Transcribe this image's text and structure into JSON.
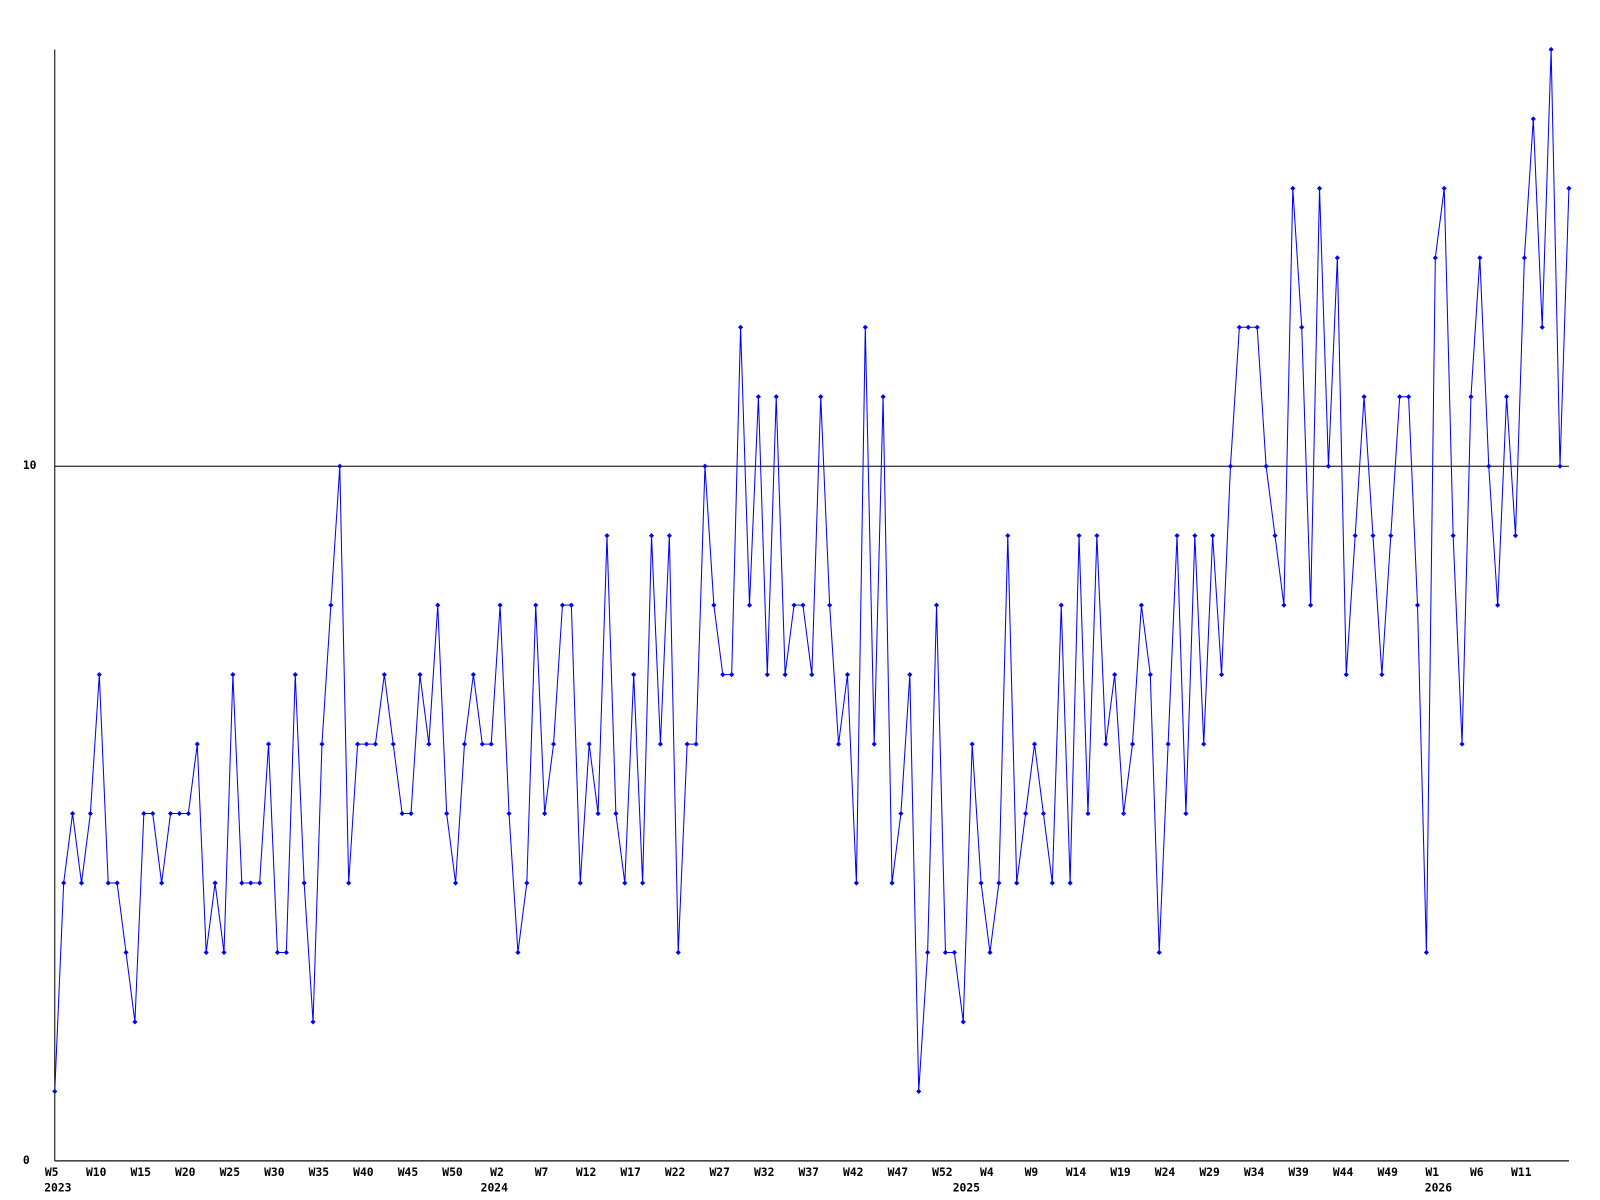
{
  "chart_data": {
    "type": "line",
    "categories": [
      "W5",
      null,
      null,
      null,
      null,
      "W10",
      null,
      null,
      null,
      null,
      "W15",
      null,
      null,
      null,
      null,
      "W20",
      null,
      null,
      null,
      null,
      "W25",
      null,
      null,
      null,
      null,
      "W30",
      null,
      null,
      null,
      null,
      "W35",
      null,
      null,
      null,
      null,
      "W40",
      null,
      null,
      null,
      null,
      "W45",
      null,
      null,
      null,
      null,
      "W50",
      null,
      null,
      null,
      null,
      "W2",
      null,
      null,
      null,
      null,
      "W7",
      null,
      null,
      null,
      null,
      "W12",
      null,
      null,
      null,
      null,
      "W17",
      null,
      null,
      null,
      null,
      "W22",
      null,
      null,
      null,
      null,
      "W27",
      null,
      null,
      null,
      null,
      "W32",
      null,
      null,
      null,
      null,
      "W37",
      null,
      null,
      null,
      null,
      "W42",
      null,
      null,
      null,
      null,
      "W47",
      null,
      null,
      null,
      null,
      "W52",
      null,
      null,
      null,
      null,
      "W4",
      null,
      null,
      null,
      null,
      "W9",
      null,
      null,
      null,
      null,
      "W14",
      null,
      null,
      null,
      null,
      "W19",
      null,
      null,
      null,
      null,
      "W24",
      null,
      null,
      null,
      null,
      "W29",
      null,
      null,
      null,
      null,
      "W34",
      null,
      null,
      null,
      null,
      "W39",
      null,
      null,
      null,
      null,
      "W44",
      null,
      null,
      null,
      null,
      "W49",
      null,
      null,
      null,
      null,
      "W1",
      null,
      null,
      null,
      null,
      "W6",
      null,
      null,
      null,
      null,
      "W11",
      null,
      null,
      null,
      null,
      null
    ],
    "years": [
      "2023",
      null,
      null,
      null,
      null,
      null,
      null,
      null,
      null,
      null,
      null,
      null,
      null,
      null,
      null,
      null,
      null,
      null,
      null,
      null,
      null,
      null,
      null,
      null,
      null,
      null,
      null,
      null,
      null,
      null,
      null,
      null,
      null,
      null,
      null,
      null,
      null,
      null,
      null,
      null,
      null,
      null,
      null,
      null,
      null,
      null,
      null,
      null,
      null,
      "2024",
      null,
      null,
      null,
      null,
      null,
      null,
      null,
      null,
      null,
      null,
      null,
      null,
      null,
      null,
      null,
      null,
      null,
      null,
      null,
      null,
      null,
      null,
      null,
      null,
      null,
      null,
      null,
      null,
      null,
      null,
      null,
      null,
      null,
      null,
      null,
      null,
      null,
      null,
      null,
      null,
      null,
      null,
      null,
      null,
      null,
      null,
      null,
      null,
      null,
      null,
      null,
      null,
      "2025",
      null,
      null,
      null,
      null,
      null,
      null,
      null,
      null,
      null,
      null,
      null,
      null,
      null,
      null,
      null,
      null,
      null,
      null,
      null,
      null,
      null,
      null,
      null,
      null,
      null,
      null,
      null,
      null,
      null,
      null,
      null,
      null,
      null,
      null,
      null,
      null,
      null,
      null,
      null,
      null,
      null,
      null,
      null,
      null,
      null,
      null,
      null,
      null,
      null,
      null,
      null,
      null,
      "2026",
      null,
      null,
      null,
      null,
      null,
      null,
      null,
      null,
      null,
      null,
      null,
      null,
      null,
      null,
      null
    ],
    "values": [
      1,
      4,
      5,
      4,
      5,
      7,
      4,
      4,
      3,
      2,
      5,
      5,
      4,
      5,
      5,
      5,
      6,
      3,
      4,
      3,
      7,
      4,
      4,
      4,
      6,
      3,
      3,
      7,
      4,
      2,
      6,
      8,
      10,
      4,
      6,
      6,
      6,
      7,
      6,
      5,
      5,
      7,
      6,
      8,
      5,
      4,
      6,
      7,
      6,
      6,
      8,
      5,
      3,
      4,
      8,
      5,
      6,
      8,
      8,
      4,
      6,
      5,
      9,
      5,
      4,
      7,
      4,
      9,
      6,
      9,
      3,
      6,
      6,
      10,
      8,
      7,
      7,
      12,
      8,
      11,
      7,
      11,
      7,
      8,
      8,
      7,
      11,
      8,
      6,
      7,
      4,
      12,
      6,
      11,
      4,
      5,
      7,
      1,
      3,
      8,
      3,
      3,
      2,
      6,
      4,
      3,
      4,
      9,
      4,
      5,
      6,
      5,
      4,
      8,
      4,
      9,
      5,
      9,
      6,
      7,
      5,
      6,
      8,
      7,
      3,
      6,
      9,
      5,
      9,
      6,
      9,
      7,
      10,
      12,
      12,
      12,
      10,
      9,
      8,
      14,
      12,
      8,
      14,
      10,
      13,
      7,
      9,
      11,
      9,
      7,
      9,
      11,
      11,
      8,
      3,
      13,
      14,
      9,
      6,
      11,
      13,
      10,
      8,
      11,
      9,
      13,
      15,
      12,
      16,
      10,
      14
    ],
    "color": "#0000ff",
    "ylim": [
      0,
      16
    ],
    "yticks": [
      0,
      10
    ],
    "grid": true
  }
}
